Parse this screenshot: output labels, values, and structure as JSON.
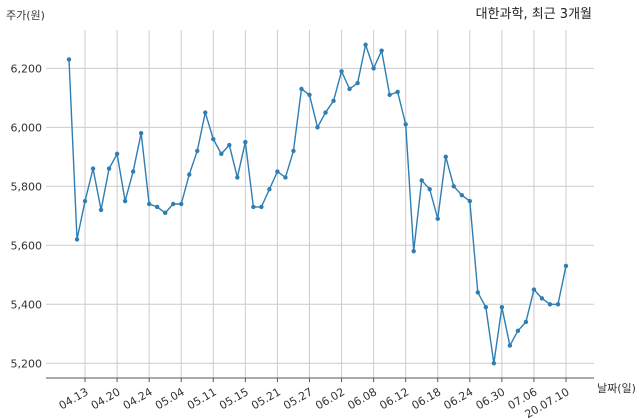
{
  "chart_data": {
    "type": "line",
    "title": "대한과학, 최근 3개월",
    "ylabel": "주가(원)",
    "xlabel": "날짜(일)",
    "ylim": [
      5150,
      6330
    ],
    "yticks": [
      5200,
      5400,
      5600,
      5800,
      6000,
      6200
    ],
    "ytick_labels": [
      "5,200",
      "5,400",
      "5,600",
      "5,800",
      "6,000",
      "6,200"
    ],
    "xticks": [
      {
        "index": 2,
        "label": "04.13"
      },
      {
        "index": 6,
        "label": "04.20"
      },
      {
        "index": 10,
        "label": "04.24"
      },
      {
        "index": 14,
        "label": "05.04"
      },
      {
        "index": 18,
        "label": "05.11"
      },
      {
        "index": 22,
        "label": "05.15"
      },
      {
        "index": 26,
        "label": "05.21"
      },
      {
        "index": 30,
        "label": "05.27"
      },
      {
        "index": 34,
        "label": "06.02"
      },
      {
        "index": 38,
        "label": "06.08"
      },
      {
        "index": 42,
        "label": "06.12"
      },
      {
        "index": 46,
        "label": "06.18"
      },
      {
        "index": 50,
        "label": "06.24"
      },
      {
        "index": 54,
        "label": "06.30"
      },
      {
        "index": 58,
        "label": "07.06"
      },
      {
        "index": 62,
        "label": "20.07.10"
      }
    ],
    "grid": true,
    "series": [
      {
        "color": "#2e7eb3",
        "values": [
          6230,
          5620,
          5750,
          5860,
          5720,
          5860,
          5910,
          5750,
          5850,
          5980,
          5740,
          5730,
          5710,
          5740,
          5740,
          5840,
          5920,
          6050,
          5960,
          5910,
          5940,
          5830,
          5950,
          5730,
          5730,
          5790,
          5850,
          5830,
          5920,
          6130,
          6110,
          6000,
          6050,
          6090,
          6190,
          6130,
          6150,
          6280,
          6200,
          6260,
          6110,
          6120,
          6010,
          5580,
          5820,
          5790,
          5690,
          5900,
          5800,
          5770,
          5750,
          5440,
          5390,
          5200,
          5390,
          5260,
          5310,
          5340,
          5450,
          5420,
          5400,
          5400,
          5530
        ]
      }
    ]
  }
}
